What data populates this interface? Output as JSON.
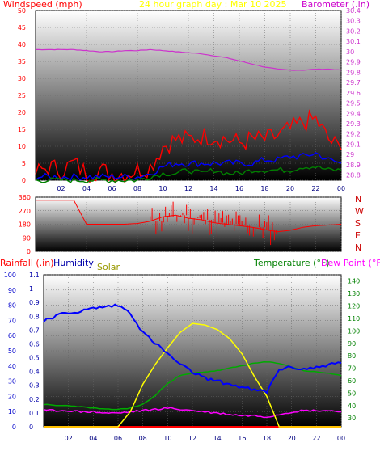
{
  "header": {
    "left": "Windspeed (mph)",
    "center": "24 hour graph day : Mar 10 2025",
    "right": "Barometer (.in)"
  },
  "direction_labels": [
    "N",
    "W",
    "S",
    "E",
    "N"
  ],
  "lower_labels": {
    "rainfall": "Rainfall (.in)",
    "humidity": "Humidity",
    "solar": "Solar",
    "temperature": "Temperature (°F)",
    "dewpoint": "Dew Point (°F)"
  },
  "colors": {
    "windspeed": "#ff0000",
    "barometer": "#cc33cc",
    "gust": "#ff0000",
    "avg_wind": "#0000ff",
    "low_wind": "#008000",
    "direction": "#ff0000",
    "humidity": "#0000ff",
    "solar": "#ffff00",
    "temperature": "#00aa00",
    "dewpoint": "#ff00ff",
    "rainfall": "#ff0000"
  },
  "chart_data": [
    {
      "type": "line",
      "x_ticks": [
        "02",
        "04",
        "06",
        "08",
        "10",
        "12",
        "14",
        "16",
        "18",
        "20",
        "22",
        "00"
      ],
      "left_axis": {
        "ticks": [
          0,
          5,
          10,
          15,
          20,
          25,
          30,
          35,
          40,
          45,
          50
        ],
        "ylim": [
          0,
          50
        ]
      },
      "right_axis": {
        "ticks": [
          "28.8",
          "28.9",
          "29",
          "29.1",
          "29.2",
          "29.3",
          "29.4",
          "29.5",
          "29.6",
          "29.7",
          "29.8",
          "29.9",
          "30",
          "30.1",
          "30.2",
          "30.3",
          "30.4"
        ],
        "ylim": [
          28.75,
          30.4
        ]
      },
      "series": [
        {
          "key": "barometer",
          "axis": "right",
          "values": [
            30.02,
            30.02,
            30.02,
            30.02,
            30.01,
            30.0,
            30.0,
            30.01,
            30.01,
            30.02,
            30.01,
            30.0,
            29.99,
            29.98,
            29.96,
            29.94,
            29.91,
            29.88,
            29.85,
            29.83,
            29.82,
            29.82,
            29.83,
            29.83,
            29.82
          ]
        },
        {
          "key": "gust",
          "axis": "left",
          "values": [
            2,
            4,
            3,
            5,
            2,
            3,
            2,
            2,
            3,
            4,
            10,
            12,
            12,
            13,
            13,
            12,
            11,
            12,
            12,
            13,
            15,
            17,
            18,
            12,
            9
          ]
        },
        {
          "key": "avg_wind",
          "axis": "left",
          "values": [
            1,
            1,
            1,
            1,
            1,
            1,
            1,
            1,
            1,
            2,
            4,
            5,
            5,
            5,
            5,
            5,
            5,
            5,
            6,
            6,
            7,
            7,
            8,
            6,
            5
          ]
        },
        {
          "key": "low_wind",
          "axis": "left",
          "values": [
            0,
            0,
            0,
            0,
            0,
            0,
            0,
            0,
            0,
            1,
            2,
            2,
            3,
            2,
            3,
            2,
            2,
            3,
            3,
            3,
            3,
            4,
            4,
            3,
            3
          ]
        }
      ]
    },
    {
      "type": "scatter",
      "x_ticks": [
        "02",
        "04",
        "06",
        "08",
        "10",
        "12",
        "14",
        "16",
        "18",
        "20",
        "22",
        "00"
      ],
      "y_ticks": [
        0,
        90,
        180,
        270,
        360
      ],
      "ylim": [
        0,
        360
      ],
      "series": [
        {
          "key": "direction",
          "values": [
            340,
            340,
            340,
            340,
            180,
            180,
            180,
            180,
            185,
            200,
            230,
            240,
            220,
            210,
            190,
            180,
            170,
            160,
            145,
            130,
            140,
            160,
            170,
            175,
            180
          ]
        }
      ]
    },
    {
      "type": "line",
      "x_ticks": [
        "02",
        "04",
        "06",
        "08",
        "10",
        "12",
        "14",
        "16",
        "18",
        "20",
        "22",
        "00"
      ],
      "left_axis": {
        "ticks": [
          0,
          10,
          20,
          30,
          40,
          50,
          60,
          70,
          80,
          90,
          100
        ],
        "ylim": [
          0,
          100
        ]
      },
      "rain_axis": {
        "ticks": [
          "0",
          "0.1",
          "0.2",
          "0.3",
          "0.4",
          "0.5",
          "0.6",
          "0.7",
          "0.8",
          "0.9",
          "1",
          "1.1"
        ],
        "ylim": [
          0,
          1.1
        ]
      },
      "right_axis": {
        "ticks": [
          30,
          40,
          50,
          60,
          70,
          80,
          90,
          100,
          110,
          120,
          130,
          140
        ],
        "ylim": [
          23,
          145
        ]
      },
      "series": [
        {
          "key": "humidity",
          "axis": "left",
          "values": [
            70,
            73,
            75,
            76,
            78,
            79,
            80,
            75,
            62,
            55,
            48,
            41,
            36,
            32,
            30,
            28,
            26,
            24,
            23,
            38,
            39,
            38,
            39,
            41,
            42
          ]
        },
        {
          "key": "solar",
          "axis": "left",
          "values": [
            0,
            0,
            0,
            0,
            0,
            0,
            0,
            10,
            28,
            41,
            52,
            62,
            68,
            67,
            64,
            58,
            48,
            33,
            20,
            0,
            0,
            0,
            0,
            0,
            0
          ]
        },
        {
          "key": "temperature",
          "axis": "right",
          "values": [
            41,
            40,
            40,
            39,
            38,
            37,
            37,
            38,
            41,
            48,
            58,
            64,
            66,
            67,
            68,
            70,
            72,
            74,
            75,
            74,
            71,
            68,
            67,
            66,
            64
          ]
        },
        {
          "key": "dewpoint",
          "axis": "right",
          "values": [
            36,
            36,
            36,
            35,
            35,
            34,
            34,
            35,
            36,
            37,
            38,
            37,
            36,
            35,
            34,
            33,
            32,
            32,
            31,
            33,
            35,
            36,
            36,
            36,
            35
          ]
        },
        {
          "key": "rainfall",
          "axis": "rain",
          "values": [
            0,
            0,
            0,
            0,
            0,
            0,
            0,
            0,
            0,
            0,
            0,
            0,
            0,
            0,
            0,
            0,
            0,
            0,
            0,
            0,
            0,
            0,
            0,
            0,
            0
          ]
        }
      ]
    }
  ]
}
